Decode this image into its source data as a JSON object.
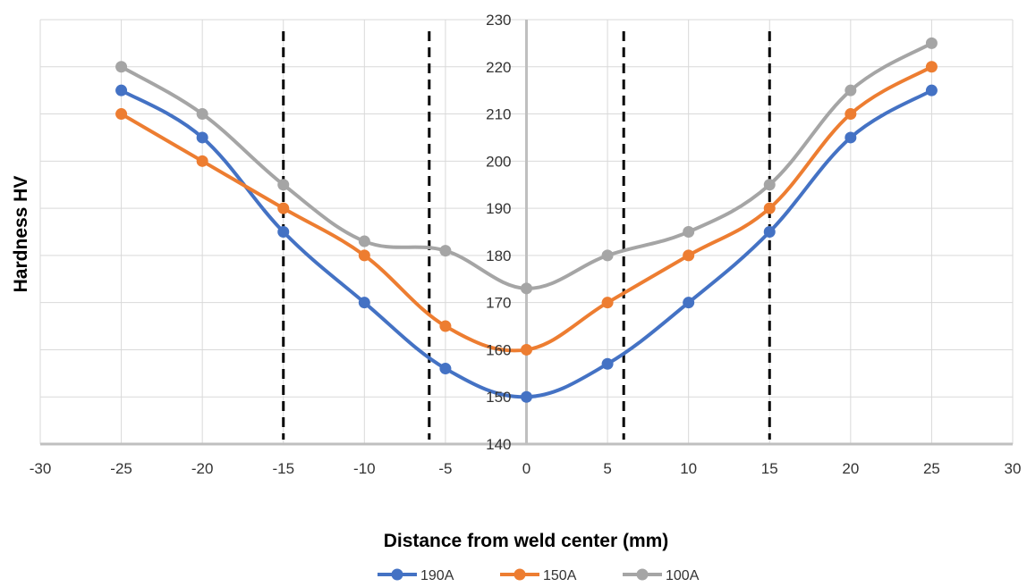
{
  "chart_data": {
    "type": "scatter",
    "title": "",
    "xlabel": "Distance from weld center (mm)",
    "ylabel": "Hardness HV",
    "xlim": [
      -30,
      30
    ],
    "ylim": [
      140,
      230
    ],
    "x_ticks": [
      "-30",
      "-25",
      "-20",
      "-15",
      "-10",
      "-5",
      "0",
      "5",
      "10",
      "15",
      "20",
      "25",
      "30"
    ],
    "y_ticks": [
      "140",
      "150",
      "160",
      "170",
      "180",
      "190",
      "200",
      "210",
      "220",
      "230"
    ],
    "grid": true,
    "smoothed_lines": true,
    "legend_position": "bottom",
    "vertical_markers": [
      {
        "x": -15,
        "style": "dashed"
      },
      {
        "x": -6,
        "style": "dashed"
      },
      {
        "x": 6,
        "style": "dashed"
      },
      {
        "x": 15,
        "style": "dashed"
      }
    ],
    "series": [
      {
        "name": "190A",
        "color": "#4472C4",
        "x": [
          -25,
          -20,
          -15,
          -10,
          -5,
          0,
          5,
          10,
          15,
          20,
          25
        ],
        "values": [
          215,
          205,
          185,
          170,
          156,
          150,
          157,
          170,
          185,
          205,
          215
        ]
      },
      {
        "name": "150A",
        "color": "#ED7D31",
        "x": [
          -25,
          -20,
          -15,
          -10,
          -5,
          0,
          5,
          10,
          15,
          20,
          25
        ],
        "values": [
          210,
          200,
          190,
          180,
          165,
          160,
          170,
          180,
          190,
          210,
          220
        ]
      },
      {
        "name": "100A",
        "color": "#A5A5A5",
        "x": [
          -25,
          -20,
          -15,
          -10,
          -5,
          0,
          5,
          10,
          15,
          20,
          25
        ],
        "values": [
          220,
          210,
          195,
          183,
          181,
          173,
          180,
          185,
          195,
          215,
          225
        ]
      }
    ]
  }
}
